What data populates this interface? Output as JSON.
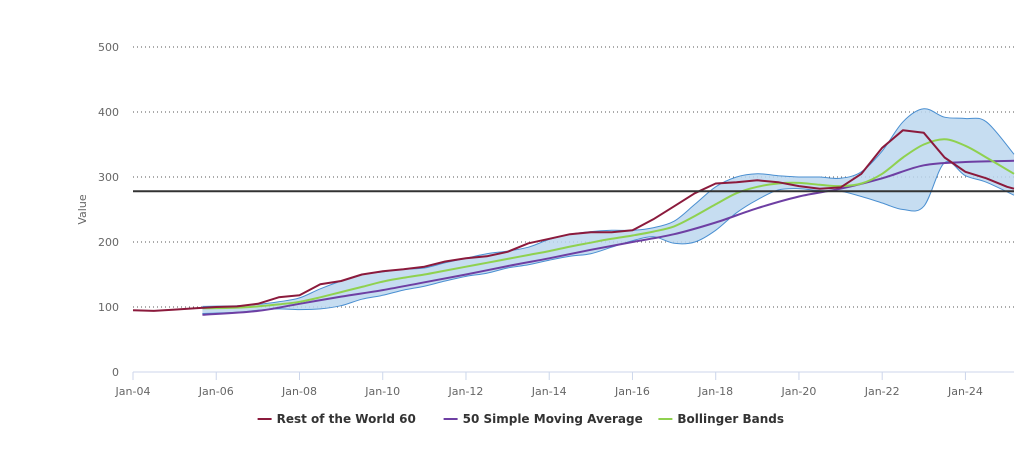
{
  "chart_data": {
    "type": "line",
    "title": "",
    "xlabel": "",
    "ylabel": "Value",
    "ylim": [
      0,
      500
    ],
    "xlim": [
      "2004-01",
      "2025-03"
    ],
    "y_ticks": [
      0,
      100,
      200,
      300,
      400,
      500
    ],
    "x_ticks": [
      "Jan-04",
      "Jan-06",
      "Jan-08",
      "Jan-10",
      "Jan-12",
      "Jan-14",
      "Jan-16",
      "Jan-18",
      "Jan-20",
      "Jan-22",
      "Jan-24"
    ],
    "grid": "horizontal dotted",
    "legend_position": "bottom-center",
    "reference_line": {
      "value": 278,
      "color": "#333333"
    },
    "colors": {
      "main": "#8b1a3c",
      "sma": "#6e3fa3",
      "bollinger_mid": "#8fd14f",
      "band_fill": "#bcd7ef",
      "band_stroke": "#4a8fd1"
    },
    "series": [
      {
        "name": "Rest of the World 60",
        "x": [
          "2004-01",
          "2004-07",
          "2005-01",
          "2005-07",
          "2006-01",
          "2006-07",
          "2007-01",
          "2007-07",
          "2008-01",
          "2008-07",
          "2009-01",
          "2009-07",
          "2010-01",
          "2010-07",
          "2011-01",
          "2011-07",
          "2012-01",
          "2012-07",
          "2013-01",
          "2013-07",
          "2014-01",
          "2014-07",
          "2015-01",
          "2015-07",
          "2016-01",
          "2016-07",
          "2017-01",
          "2017-07",
          "2018-01",
          "2018-07",
          "2019-01",
          "2019-07",
          "2020-01",
          "2020-07",
          "2021-01",
          "2021-07",
          "2022-01",
          "2022-07",
          "2023-01",
          "2023-07",
          "2024-01",
          "2024-07",
          "2025-01",
          "2025-03"
        ],
        "values": [
          95,
          94,
          96,
          98,
          100,
          101,
          105,
          115,
          118,
          135,
          140,
          150,
          155,
          158,
          162,
          170,
          175,
          178,
          185,
          198,
          205,
          212,
          215,
          215,
          218,
          235,
          255,
          275,
          290,
          292,
          295,
          292,
          286,
          282,
          284,
          305,
          345,
          372,
          368,
          330,
          308,
          298,
          285,
          282
        ]
      },
      {
        "name": "50 Simple Moving Average",
        "x": [
          "2005-09",
          "2007-01",
          "2008-01",
          "2009-01",
          "2010-01",
          "2011-01",
          "2012-01",
          "2013-01",
          "2014-01",
          "2015-01",
          "2016-01",
          "2017-01",
          "2018-01",
          "2019-01",
          "2020-01",
          "2021-01",
          "2022-01",
          "2023-01",
          "2024-01",
          "2025-03"
        ],
        "values": [
          88,
          94,
          105,
          116,
          126,
          138,
          150,
          163,
          175,
          188,
          200,
          212,
          230,
          252,
          270,
          282,
          298,
          318,
          323,
          325
        ]
      },
      {
        "name": "Bollinger Bands",
        "x": [
          "2005-09",
          "2006-07",
          "2007-01",
          "2007-07",
          "2008-01",
          "2008-07",
          "2009-01",
          "2009-07",
          "2010-01",
          "2010-07",
          "2011-01",
          "2011-07",
          "2012-01",
          "2012-07",
          "2013-01",
          "2013-07",
          "2014-01",
          "2014-07",
          "2015-01",
          "2015-07",
          "2016-01",
          "2016-07",
          "2017-01",
          "2017-07",
          "2018-01",
          "2018-07",
          "2019-01",
          "2019-07",
          "2020-01",
          "2020-07",
          "2021-01",
          "2021-07",
          "2022-01",
          "2022-07",
          "2023-01",
          "2023-07",
          "2024-01",
          "2024-07",
          "2025-03"
        ],
        "values": [
          98,
          99,
          101,
          104,
          108,
          115,
          123,
          131,
          139,
          145,
          150,
          156,
          162,
          168,
          174,
          180,
          186,
          193,
          199,
          205,
          210,
          216,
          224,
          240,
          258,
          275,
          285,
          290,
          291,
          288,
          286,
          290,
          305,
          330,
          350,
          358,
          348,
          330,
          305
        ],
        "upper": [
          101,
          102,
          104,
          108,
          114,
          128,
          140,
          150,
          154,
          158,
          160,
          168,
          175,
          182,
          186,
          192,
          204,
          212,
          216,
          218,
          218,
          222,
          232,
          258,
          285,
          300,
          305,
          302,
          300,
          300,
          298,
          308,
          340,
          385,
          405,
          392,
          390,
          385,
          335
        ],
        "lower": [
          90,
          92,
          95,
          97,
          96,
          97,
          102,
          112,
          118,
          126,
          132,
          140,
          147,
          152,
          160,
          165,
          172,
          178,
          182,
          192,
          202,
          208,
          198,
          200,
          218,
          245,
          265,
          280,
          282,
          279,
          278,
          270,
          260,
          250,
          255,
          322,
          302,
          292,
          272
        ]
      }
    ]
  }
}
